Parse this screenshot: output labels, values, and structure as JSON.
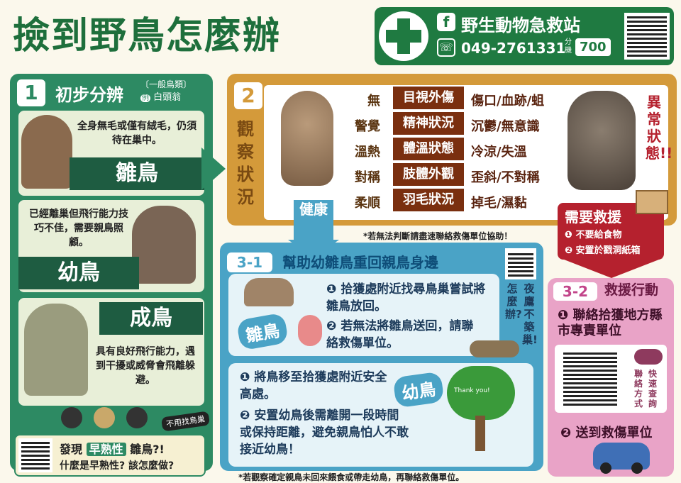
{
  "header": {
    "title": "撿到野鳥怎麼辦",
    "station_name": "野生動物急救站",
    "fb_icon": "f",
    "phone_icon": "phone-icon",
    "phone": "049-2761331",
    "ext_label": "分機",
    "ext": "700"
  },
  "step1": {
    "num": "1",
    "title": "初步分辨",
    "sub_type": "〔一般鳥類〕",
    "sub_example_tag": "例",
    "sub_example": "白頭翁",
    "nestling": {
      "label": "雛鳥",
      "text": "全身無毛或僅有絨毛，仍須待在巢中。"
    },
    "fledgling": {
      "label": "幼鳥",
      "text": "已經離巢但飛行能力技巧不佳，需要親鳥照顧。"
    },
    "adult": {
      "label": "成鳥",
      "text": "具有良好飛行能力，遇到干擾或威脅會飛離躲避。"
    },
    "no_nest_tag": "不用找鳥巢",
    "precocial_prefix": "發現",
    "precocial_highlight": "早熟性",
    "precocial_suffix": "雛鳥?!",
    "precocial_question": "什麼是早熟性? 該怎麼做?"
  },
  "step2": {
    "num": "2",
    "side_title": "觀察狀況",
    "rows": [
      {
        "left": "無",
        "center": "目視外傷",
        "right": "傷口/血跡/蛆"
      },
      {
        "left": "警覺",
        "center": "精神狀況",
        "right": "沉鬱/無意識"
      },
      {
        "left": "溫熱",
        "center": "體溫狀態",
        "right": "冷涼/失溫"
      },
      {
        "left": "對稱",
        "center": "肢體外觀",
        "right": "歪斜/不對稱"
      },
      {
        "left": "柔順",
        "center": "羽毛狀況",
        "right": "掉毛/濕黏"
      }
    ],
    "abnormal": "異常狀態!!",
    "note": "*若無法判斷請盡速聯絡救傷單位協助！"
  },
  "healthy_label": "健康",
  "step31": {
    "num": "3-1",
    "title": "幫助幼雛鳥重回親鳥身邊",
    "nestling_badge": "雛鳥",
    "nestling_steps": [
      {
        "num": "❶",
        "text": "拾獲處附近找尋鳥巢嘗試將雛鳥放回。"
      },
      {
        "num": "❷",
        "text": "若無法將雛鳥送回，請聯絡救傷單位。"
      }
    ],
    "fledgling_badge": "幼鳥",
    "thank_you": "Thank you!",
    "fledgling_steps": [
      {
        "num": "❶",
        "text": "將鳥移至拾獲處附近安全高處。"
      },
      {
        "num": "❷",
        "text": "安置幼鳥後需離開一段時間或保持距離，避免親鳥怕人不敢接近幼鳥！"
      }
    ],
    "nightjar_col1": "怎麼辦?",
    "nightjar_col2": "夜鷹不築巢!",
    "note": "*若觀察確定親鳥未回來餵食或帶走幼鳥，再聯絡救傷單位。"
  },
  "need_rescue": {
    "title": "需要救援",
    "items": [
      {
        "num": "❶",
        "text": "不要給食物"
      },
      {
        "num": "❷",
        "text": "安置於戳洞紙箱"
      }
    ]
  },
  "step32": {
    "num": "3-2",
    "title": "救援行動",
    "step1_num": "❶",
    "step1": "聯絡拾獲地方縣市專責單位",
    "quick_col1": "聯絡方式",
    "quick_col2": "快速查詢",
    "step2_num": "❷",
    "step2": "送到救傷單位"
  },
  "colors": {
    "green": "#2d8a63",
    "orange": "#d49a3a",
    "blue": "#4aa3c6",
    "pink": "#e9a3c7",
    "red": "#b5212e"
  }
}
